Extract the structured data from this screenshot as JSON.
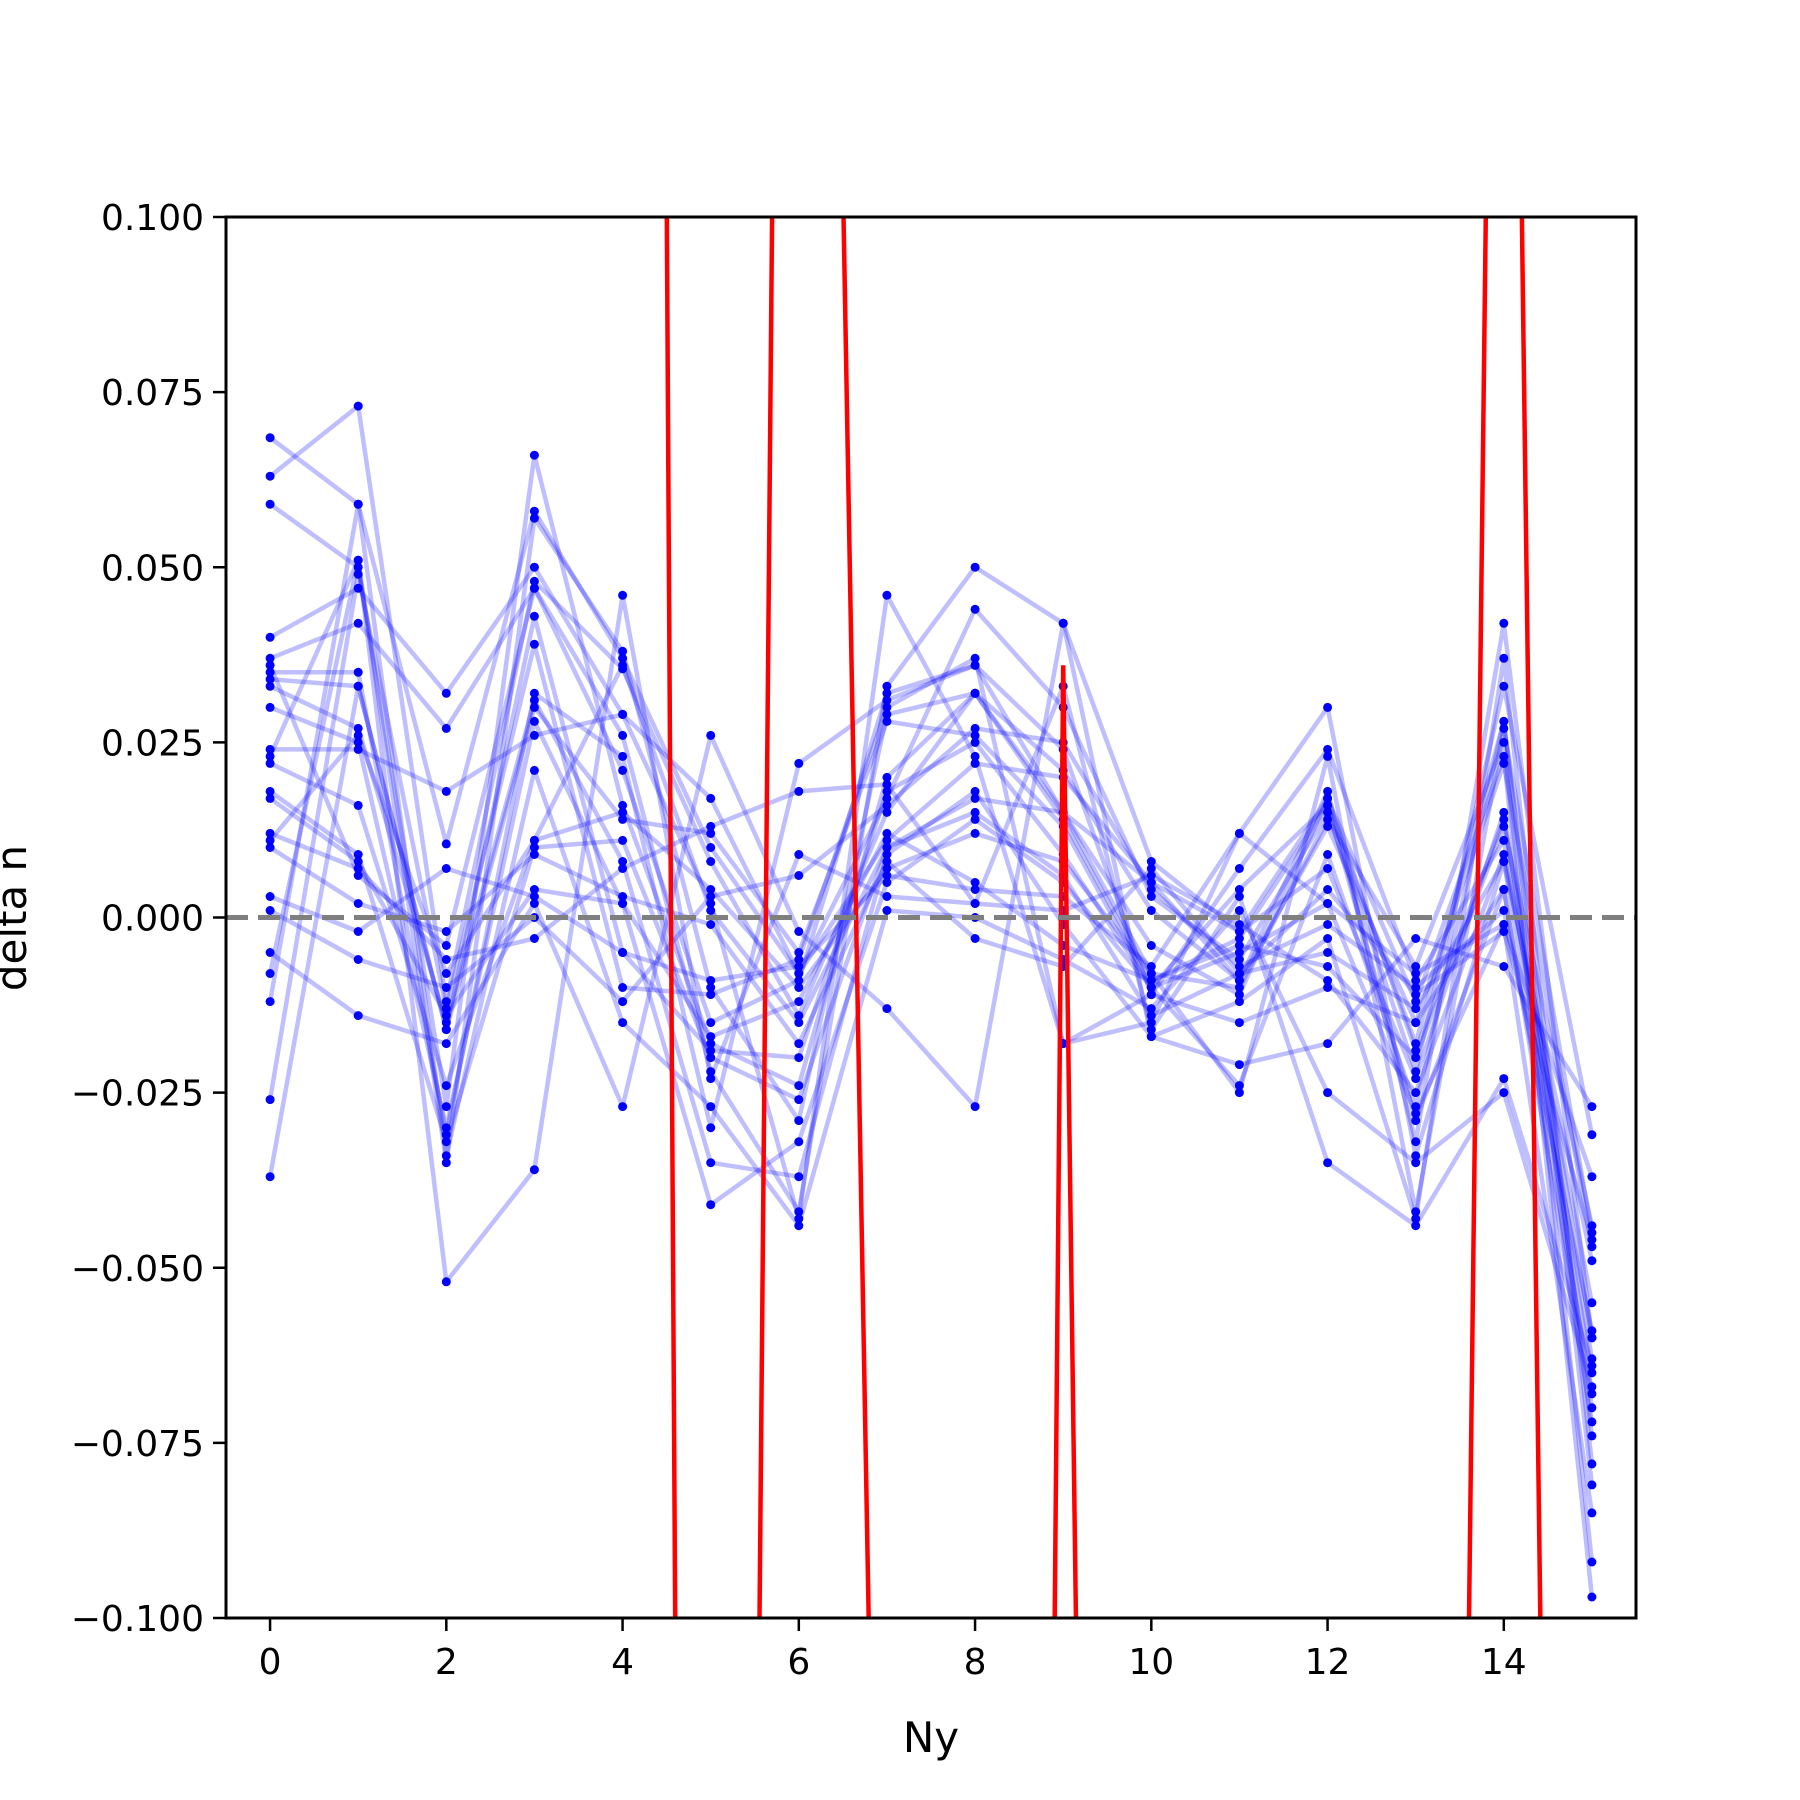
{
  "chart_data": {
    "type": "line",
    "title": "",
    "xlabel": "Ny",
    "ylabel": "delta n",
    "xlim": [
      -0.5,
      15.5
    ],
    "ylim": [
      -0.1,
      0.1
    ],
    "xticks": [
      0,
      2,
      4,
      6,
      8,
      10,
      12,
      14
    ],
    "xtick_labels": [
      "0",
      "2",
      "4",
      "6",
      "8",
      "10",
      "12",
      "14"
    ],
    "yticks": [
      -0.1,
      -0.075,
      -0.05,
      -0.025,
      0.0,
      0.025,
      0.05,
      0.075,
      0.1
    ],
    "ytick_labels": [
      "−0.100",
      "−0.075",
      "−0.050",
      "−0.025",
      "0.000",
      "0.025",
      "0.050",
      "0.075",
      "0.100"
    ],
    "grid": false,
    "reference_line": {
      "y": 0.0,
      "style": "dashed",
      "color": "#7f7f7f"
    },
    "x": [
      0,
      1,
      2,
      3,
      4,
      5,
      6,
      7,
      8,
      9,
      10,
      11,
      12,
      13,
      14,
      15
    ],
    "series": [
      {
        "values": [
          0.0685,
          0.059,
          0.0105,
          0.058,
          0.037,
          0.01,
          -0.008,
          0.017,
          0.044,
          0.03,
          0.003,
          -0.006,
          0.015,
          -0.022,
          0.033,
          -0.031
        ],
        "color": "#0000ff"
      },
      {
        "values": [
          0.063,
          0.073,
          -0.012,
          0.048,
          0.0355,
          0.008,
          -0.014,
          0.015,
          0.032,
          0.021,
          0.001,
          -0.009,
          0.018,
          -0.032,
          0.042,
          -0.06
        ],
        "color": "#0000ff"
      },
      {
        "values": [
          0.059,
          0.05,
          -0.027,
          0.066,
          0.016,
          -0.018,
          -0.024,
          0.02,
          0.032,
          0.015,
          -0.008,
          -0.025,
          0.023,
          -0.042,
          0.027,
          -0.045
        ],
        "color": "#0000ff"
      },
      {
        "values": [
          0.04,
          0.047,
          0.032,
          0.05,
          0.029,
          0.002,
          -0.043,
          0.046,
          0.023,
          -0.018,
          -0.015,
          0.012,
          0.03,
          -0.034,
          0.008,
          -0.065
        ],
        "color": "#0000ff"
      },
      {
        "values": [
          0.037,
          0.042,
          0.027,
          0.047,
          0.026,
          -0.022,
          -0.042,
          0.033,
          0.05,
          0.042,
          0.008,
          -0.002,
          0.007,
          -0.023,
          0.015,
          -0.07
        ],
        "color": "#0000ff"
      },
      {
        "values": [
          0.035,
          0.035,
          -0.031,
          0.032,
          0.023,
          -0.03,
          0.022,
          0.031,
          0.036,
          0.024,
          -0.011,
          0.007,
          0.024,
          -0.009,
          0.011,
          -0.063
        ],
        "color": "#0000ff"
      },
      {
        "values": [
          0.034,
          0.033,
          -0.016,
          0.03,
          0.014,
          0.012,
          -0.005,
          0.028,
          0.026,
          0.013,
          -0.01,
          0.004,
          0.016,
          -0.018,
          0.028,
          -0.074
        ],
        "color": "#0000ff"
      },
      {
        "values": [
          0.033,
          0.027,
          -0.015,
          0.031,
          0.008,
          -0.035,
          -0.037,
          0.009,
          0.018,
          -0.001,
          -0.017,
          -0.012,
          -0.003,
          -0.043,
          0.037,
          -0.078
        ],
        "color": "#0000ff"
      },
      {
        "values": [
          0.03,
          0.025,
          -0.03,
          0.028,
          0.002,
          -0.041,
          -0.032,
          0.005,
          0.014,
          0.005,
          -0.01,
          -0.005,
          0.002,
          -0.028,
          -0.001,
          -0.085
        ],
        "color": "#0000ff"
      },
      {
        "values": [
          0.024,
          0.024,
          0.018,
          0.026,
          0.029,
          0.017,
          -0.008,
          0.011,
          0.022,
          0.02,
          0.005,
          -0.002,
          0.017,
          -0.012,
          0.023,
          -0.097
        ],
        "color": "#0000ff"
      },
      {
        "values": [
          0.022,
          0.016,
          -0.024,
          0.011,
          0.015,
          0.004,
          -0.01,
          0.007,
          0.012,
          0.008,
          -0.008,
          -0.01,
          0.014,
          -0.007,
          0.025,
          -0.092
        ],
        "color": "#0000ff"
      },
      {
        "values": [
          0.018,
          0.009,
          -0.032,
          0.01,
          0.011,
          -0.02,
          -0.026,
          0.01,
          0.017,
          0.015,
          0.005,
          -0.009,
          0.013,
          -0.015,
          0.022,
          -0.047
        ],
        "color": "#0000ff"
      },
      {
        "values": [
          0.017,
          0.008,
          -0.014,
          0.004,
          0.002,
          -0.017,
          -0.012,
          0.012,
          0.005,
          -0.004,
          -0.009,
          -0.004,
          -0.007,
          -0.02,
          0.013,
          -0.044
        ],
        "color": "#0000ff"
      },
      {
        "values": [
          0.012,
          0.007,
          -0.006,
          -0.003,
          0.007,
          0.013,
          0.018,
          0.019,
          0.002,
          0.001,
          0.006,
          -0.001,
          -0.009,
          -0.025,
          0.009,
          -0.055
        ],
        "color": "#0000ff"
      },
      {
        "values": [
          0.01,
          0.002,
          -0.002,
          0.009,
          0.003,
          -0.001,
          -0.018,
          0.008,
          -0.003,
          -0.007,
          0.007,
          -0.008,
          -0.005,
          -0.013,
          0.008,
          -0.049
        ],
        "color": "#0000ff"
      },
      {
        "values": [
          0.003,
          -0.002,
          0.007,
          0.003,
          -0.005,
          -0.009,
          -0.007,
          0.006,
          0.004,
          0.003,
          -0.007,
          0.012,
          0.002,
          -0.008,
          -0.001,
          -0.037
        ],
        "color": "#0000ff"
      },
      {
        "values": [
          0.001,
          -0.006,
          -0.01,
          0.0,
          -0.012,
          0.003,
          0.006,
          0.016,
          0.027,
          0.025,
          0.004,
          -0.007,
          -0.001,
          -0.01,
          0.001,
          -0.059
        ],
        "color": "#0000ff"
      },
      {
        "values": [
          -0.005,
          -0.014,
          -0.018,
          0.002,
          -0.027,
          0.026,
          -0.002,
          -0.013,
          -0.027,
          0.042,
          -0.017,
          -0.021,
          -0.018,
          -0.003,
          -0.007,
          -0.027
        ],
        "color": "#0000ff"
      },
      {
        "values": [
          -0.008,
          0.051,
          -0.052,
          -0.036,
          0.046,
          -0.023,
          0.009,
          0.003,
          0.002,
          0.033,
          -0.016,
          0.003,
          -0.035,
          -0.044,
          -0.023,
          -0.064
        ],
        "color": "#0000ff"
      },
      {
        "values": [
          -0.012,
          0.059,
          -0.034,
          0.021,
          -0.015,
          -0.027,
          -0.044,
          0.001,
          0.0,
          -0.006,
          -0.013,
          0.001,
          -0.025,
          -0.035,
          -0.025,
          -0.067
        ],
        "color": "#0000ff"
      },
      {
        "values": [
          -0.026,
          0.049,
          -0.013,
          0.039,
          -0.01,
          -0.011,
          -0.006,
          0.03,
          0.037,
          -0.018,
          -0.011,
          -0.015,
          -0.01,
          -0.015,
          0.004,
          -0.072
        ],
        "color": "#0000ff"
      },
      {
        "values": [
          -0.037,
          0.033,
          -0.016,
          0.043,
          -0.005,
          -0.019,
          -0.02,
          0.018,
          0.025,
          0.009,
          -0.01,
          -0.024,
          0.009,
          -0.027,
          0.028,
          -0.081
        ],
        "color": "#0000ff"
      },
      {
        "values": [
          0.011,
          0.026,
          -0.008,
          0.011,
          0.036,
          0.001,
          -0.015,
          0.01,
          0.015,
          0.006,
          -0.014,
          -0.008,
          0.004,
          -0.011,
          -0.002,
          -0.046
        ],
        "color": "#0000ff"
      },
      {
        "values": [
          0.036,
          0.006,
          -0.004,
          0.047,
          0.021,
          -0.015,
          -0.009,
          0.032,
          0.036,
          0.015,
          -0.004,
          -0.011,
          0.017,
          -0.019,
          0.014,
          -0.06
        ],
        "color": "#0000ff"
      },
      {
        "values": [
          0.023,
          0.051,
          -0.035,
          0.057,
          0.038,
          -0.01,
          -0.029,
          0.029,
          0.032,
          0.014,
          -0.009,
          -0.003,
          0.016,
          -0.029,
          0.004,
          -0.068
        ],
        "color": "#0000ff"
      }
    ],
    "red_series": {
      "x": [
        4.5,
        4.6,
        5.55,
        5.7,
        6.5,
        6.8,
        8.9,
        9.0,
        9.15,
        13.6,
        13.8,
        14.2,
        14.42
      ],
      "values": [
        0.105,
        -0.105,
        -0.105,
        0.105,
        0.105,
        -0.105,
        -0.105,
        0.036,
        -0.105,
        -0.105,
        0.105,
        0.105,
        -0.105
      ],
      "color": "#ff0000"
    }
  }
}
